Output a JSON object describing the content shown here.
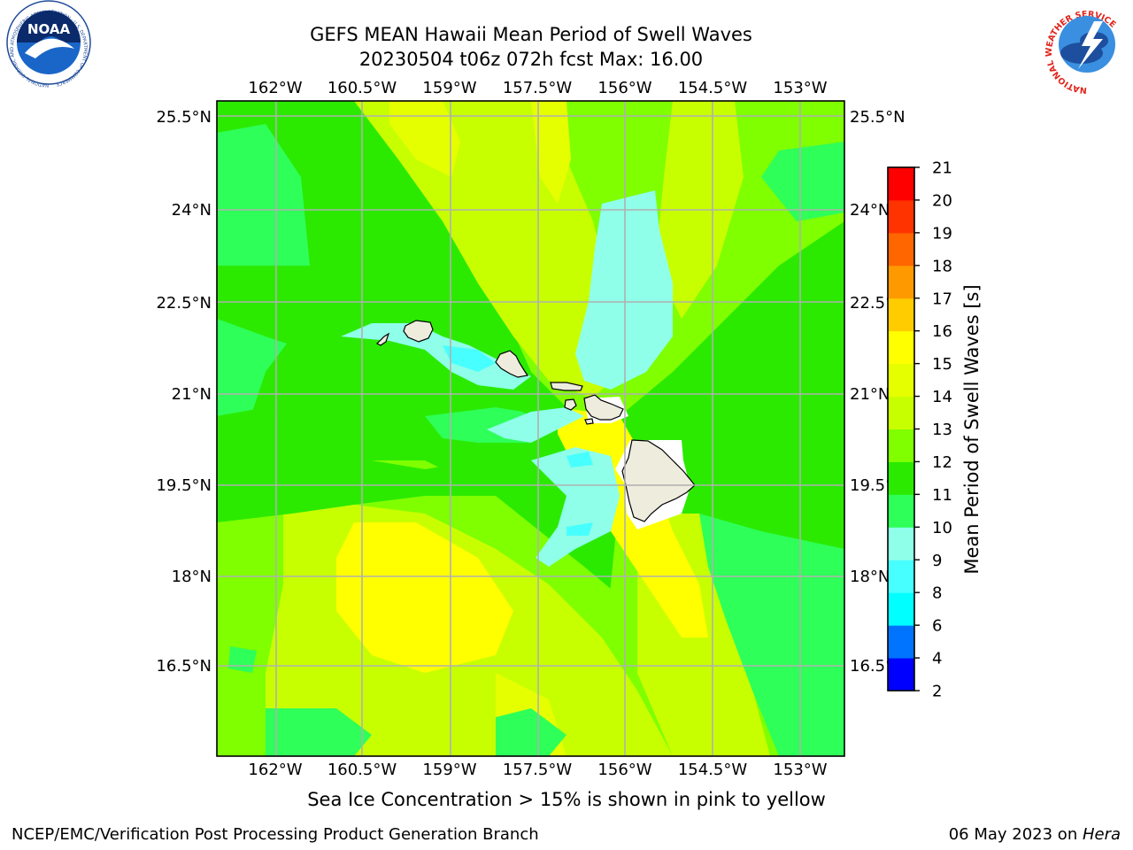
{
  "header": {
    "title": "GEFS MEAN Hawaii Mean Period of Swell Waves",
    "subtitle": "20230504 t06z 072h fcst   Max: 16.00"
  },
  "map": {
    "lon_labels": [
      "162°W",
      "160.5°W",
      "159°W",
      "157.5°W",
      "156°W",
      "154.5°W",
      "153°W"
    ],
    "lat_labels": [
      "25.5°N",
      "24°N",
      "22.5°N",
      "21°N",
      "19.5°N",
      "18°N",
      "16.5°N"
    ],
    "caption": "Sea Ice Concentration > 15% is shown in pink to yellow"
  },
  "colorbar": {
    "label": "Mean Period of Swell Waves [s]",
    "ticks": [
      "2",
      "4",
      "6",
      "8",
      "9",
      "10",
      "11",
      "12",
      "13",
      "14",
      "15",
      "16",
      "17",
      "18",
      "19",
      "20",
      "21"
    ],
    "colors": [
      "#0000ff",
      "#0073ff",
      "#00ffff",
      "#48ffff",
      "#8fffe9",
      "#2eff59",
      "#2bea00",
      "#7fff00",
      "#c8ff00",
      "#e6ff00",
      "#ffff00",
      "#ffcc00",
      "#ff9900",
      "#ff6600",
      "#ff3300",
      "#ff0000"
    ]
  },
  "logos": {
    "noaa_text": "NOAA",
    "noaa_ring": "NATIONAL OCEANIC AND ATMOSPHERIC ADMINISTRATION · U.S. DEPARTMENT OF COMMERCE",
    "nws_ring": "NATIONAL WEATHER SERVICE"
  },
  "footer": {
    "left": "NCEP/EMC/Verification Post Processing Product Generation Branch",
    "right_prefix": "06 May 2023 on ",
    "right_host": "Hera"
  }
}
